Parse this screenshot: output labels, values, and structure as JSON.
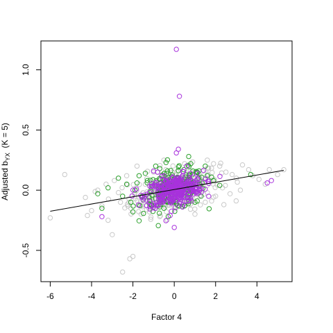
{
  "chart_data": {
    "type": "scatter",
    "xlabel": "Factor 4",
    "ylabel_main": "Adjusted b",
    "ylabel_sub": "YX",
    "ylabel_suffix": "  (K = 5)",
    "xlim": [
      -6.45,
      5.7
    ],
    "ylim": [
      -0.76,
      1.24
    ],
    "x_ticks": [
      -6,
      -4,
      -2,
      0,
      2,
      4
    ],
    "y_ticks": [
      -0.5,
      0.0,
      0.5,
      1.0
    ],
    "y_tick_labels": [
      "-0.5",
      "0.0",
      "0.5",
      "1.0"
    ],
    "grid": false,
    "legend": null,
    "colors": {
      "gray": "#c8c8c8",
      "green": "#2ca02c",
      "purple": "#a832dc",
      "line": "#000000"
    },
    "fit_line": {
      "x": [
        -6.0,
        5.3
      ],
      "y": [
        -0.175,
        0.165
      ]
    },
    "series": [
      {
        "color": "gray",
        "points": [
          [
            -6.0,
            -0.23
          ],
          [
            -5.3,
            0.13
          ],
          [
            -4.3,
            -0.06
          ],
          [
            -4.2,
            -0.21
          ],
          [
            -4.0,
            -0.17
          ],
          [
            -3.7,
            0.0
          ],
          [
            -3.5,
            -0.13
          ],
          [
            -3.2,
            -0.25
          ],
          [
            -3.0,
            -0.37
          ],
          [
            -2.5,
            -0.68
          ],
          [
            -2.15,
            -0.57
          ],
          [
            -2.0,
            -0.55
          ],
          [
            -2.9,
            0.08
          ],
          [
            -2.7,
            -0.02
          ],
          [
            -2.3,
            0.12
          ],
          [
            -2.1,
            -0.15
          ],
          [
            -1.8,
            0.2
          ],
          [
            -1.6,
            -0.2
          ],
          [
            -1.4,
            0.05
          ],
          [
            -1.2,
            -0.18
          ],
          [
            -1.0,
            0.15
          ],
          [
            -3.3,
            0.05
          ],
          [
            -2.6,
            -0.1
          ],
          [
            -1.9,
            -0.05
          ],
          [
            1.6,
            0.25
          ],
          [
            1.9,
            0.22
          ],
          [
            2.2,
            0.2
          ],
          [
            2.5,
            0.15
          ],
          [
            2.8,
            0.13
          ],
          [
            3.0,
            0.1
          ],
          [
            3.3,
            0.21
          ],
          [
            3.6,
            0.17
          ],
          [
            3.8,
            0.12
          ],
          [
            4.1,
            0.09
          ],
          [
            4.4,
            0.05
          ],
          [
            4.6,
            0.17
          ],
          [
            5.0,
            0.13
          ],
          [
            5.3,
            0.17
          ],
          [
            1.5,
            -0.1
          ],
          [
            2.0,
            -0.05
          ],
          [
            2.4,
            -0.12
          ],
          [
            2.7,
            -0.03
          ],
          [
            3.2,
            0.0
          ],
          [
            0.5,
            0.22
          ],
          [
            1.0,
            -0.2
          ],
          [
            -0.5,
            0.25
          ],
          [
            0.8,
            0.16
          ],
          [
            -0.7,
            -0.22
          ]
        ]
      },
      {
        "color": "green",
        "points": [
          [
            -3.7,
            -0.03
          ],
          [
            -3.5,
            -0.15
          ],
          [
            -3.2,
            0.02
          ],
          [
            -2.7,
            0.1
          ],
          [
            -2.5,
            -0.05
          ],
          [
            -2.3,
            0.05
          ],
          [
            -2.1,
            -0.1
          ],
          [
            -1.9,
            0.0
          ],
          [
            -1.7,
            0.12
          ],
          [
            -1.5,
            -0.08
          ],
          [
            -1.3,
            0.08
          ],
          [
            -1.1,
            -0.12
          ],
          [
            -0.9,
            0.2
          ],
          [
            -0.7,
            0.18
          ],
          [
            -0.5,
            -0.15
          ],
          [
            -0.3,
            0.06
          ],
          [
            0.3,
            0.1
          ],
          [
            0.5,
            -0.13
          ],
          [
            0.7,
            0.28
          ],
          [
            0.9,
            0.16
          ],
          [
            1.1,
            0.15
          ],
          [
            1.3,
            -0.05
          ],
          [
            1.6,
            0.12
          ],
          [
            1.9,
            0.08
          ],
          [
            2.2,
            0.04
          ],
          [
            3.7,
            0.13
          ],
          [
            -2.0,
            -0.18
          ],
          [
            -1.4,
            0.14
          ],
          [
            0.8,
            0.22
          ],
          [
            1.5,
            0.2
          ],
          [
            -0.4,
            0.23
          ],
          [
            1.0,
            -0.1
          ],
          [
            -1.8,
            0.06
          ]
        ]
      },
      {
        "color": "purple",
        "points": [
          [
            0.1,
            1.17
          ],
          [
            0.25,
            0.78
          ],
          [
            0.2,
            0.34
          ],
          [
            0.1,
            0.31
          ],
          [
            -0.2,
            -0.21
          ],
          [
            0.0,
            -0.31
          ],
          [
            -1.0,
            0.16
          ],
          [
            -0.8,
            0.15
          ],
          [
            -3.5,
            -0.22
          ],
          [
            -0.6,
            -0.05
          ],
          [
            -0.4,
            0.08
          ],
          [
            -0.2,
            -0.1
          ],
          [
            0.3,
            0.05
          ],
          [
            0.5,
            -0.05
          ],
          [
            0.7,
            0.1
          ],
          [
            1.0,
            0.02
          ],
          [
            4.5,
            0.06
          ],
          [
            4.7,
            0.08
          ],
          [
            -1.2,
            -0.02
          ],
          [
            0.6,
            0.2
          ],
          [
            -0.5,
            0.12
          ],
          [
            0.4,
            -0.14
          ]
        ]
      }
    ],
    "cloud": {
      "center_x": 0.0,
      "center_y": 0.0,
      "x_spread": 0.7,
      "y_spread": 0.06
    }
  }
}
